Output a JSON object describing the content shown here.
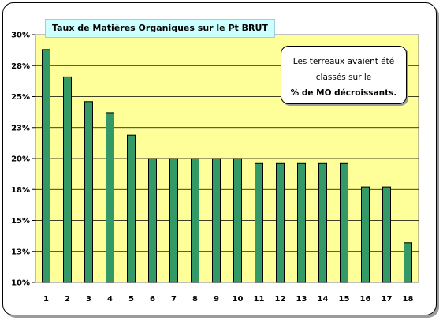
{
  "chart_data": {
    "type": "bar",
    "title": "Taux de Matières Organiques sur le Pt BRUT",
    "categories": [
      "1",
      "2",
      "3",
      "4",
      "5",
      "6",
      "7",
      "8",
      "9",
      "10",
      "11",
      "12",
      "13",
      "14",
      "15",
      "16",
      "17",
      "18"
    ],
    "values": [
      28.8,
      26.6,
      24.6,
      23.7,
      21.9,
      20.0,
      20.0,
      20.0,
      20.0,
      20.0,
      19.6,
      19.6,
      19.6,
      19.6,
      19.6,
      17.7,
      17.7,
      13.2
    ],
    "y_tick_labels": [
      "10%",
      "13%",
      "15%",
      "18%",
      "20%",
      "23%",
      "25%",
      "28%",
      "30%"
    ],
    "ylim": [
      10,
      30
    ],
    "xlabel": "",
    "ylabel": "",
    "grid": true,
    "colors": {
      "plot_bg": "#ffff99",
      "bar": "#339966",
      "bar_stroke": "#000000",
      "title_bg": "#ccffff"
    },
    "annotation": {
      "line1": "Les terreaux avaient été",
      "line2": "classés sur le",
      "line3": "% de MO décroissants."
    }
  }
}
